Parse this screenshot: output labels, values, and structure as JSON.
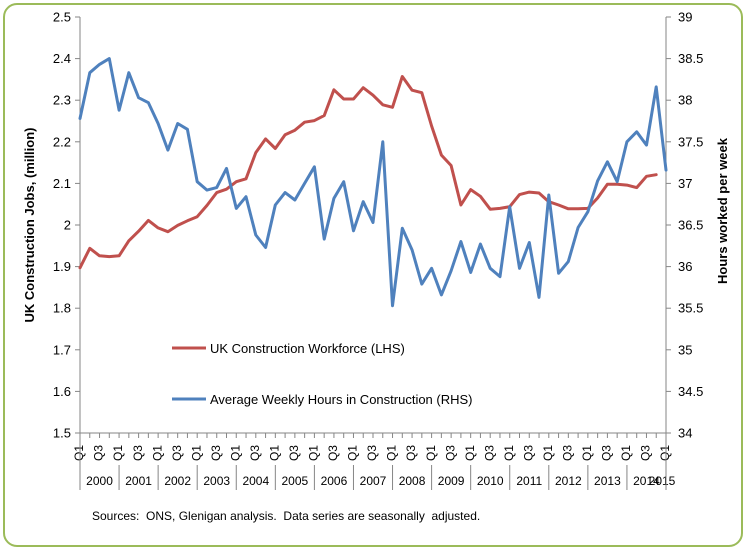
{
  "chart_data": {
    "type": "line",
    "title": "",
    "y_left_label": "UK Construction Jobs, (million)",
    "y_right_label": "Hours worked per week",
    "y_left_lim": [
      1.5,
      2.5
    ],
    "y_left_ticks": [
      "1.5",
      "1.6",
      "1.7",
      "1.8",
      "1.9",
      "2",
      "2.1",
      "2.2",
      "2.3",
      "2.4",
      "2.5"
    ],
    "y_right_lim": [
      34,
      39
    ],
    "y_right_ticks": [
      "34",
      "34.5",
      "35",
      "35.5",
      "36",
      "36.5",
      "37",
      "37.5",
      "38",
      "38.5",
      "39"
    ],
    "quarter_labels": [
      "Q1",
      "Q3"
    ],
    "years": [
      "2000",
      "2001",
      "2002",
      "2003",
      "2004",
      "2005",
      "2006",
      "2007",
      "2008",
      "2009",
      "2010",
      "2011",
      "2012",
      "2013",
      "2014",
      "2015"
    ],
    "grid": false,
    "legend": "center-left",
    "series": [
      {
        "name": "UK Construction Workforce (LHS)",
        "axis": "left",
        "color": "#c0504d",
        "values": [
          1.897,
          1.944,
          1.926,
          1.924,
          1.926,
          1.962,
          1.985,
          2.011,
          1.993,
          1.984,
          1.999,
          2.01,
          2.02,
          2.047,
          2.078,
          2.086,
          2.104,
          2.111,
          2.174,
          2.207,
          2.184,
          2.217,
          2.228,
          2.247,
          2.251,
          2.263,
          2.325,
          2.303,
          2.303,
          2.33,
          2.312,
          2.289,
          2.283,
          2.357,
          2.324,
          2.318,
          2.238,
          2.168,
          2.143,
          2.048,
          2.085,
          2.069,
          2.038,
          2.04,
          2.044,
          2.073,
          2.079,
          2.077,
          2.056,
          2.048,
          2.039,
          2.039,
          2.04,
          2.065,
          2.098,
          2.098,
          2.096,
          2.09,
          2.117,
          2.121
        ]
      },
      {
        "name": "Average Weekly Hours in Construction (RHS)",
        "axis": "right",
        "color": "#4f81bd",
        "values": [
          37.78,
          38.33,
          38.43,
          38.5,
          37.88,
          38.33,
          38.03,
          37.97,
          37.72,
          37.4,
          37.72,
          37.65,
          37.02,
          36.92,
          36.95,
          37.18,
          36.7,
          36.84,
          36.38,
          36.23,
          36.74,
          36.89,
          36.8,
          37.0,
          37.2,
          36.33,
          36.82,
          37.02,
          36.43,
          36.78,
          36.53,
          37.5,
          35.53,
          36.46,
          36.2,
          35.79,
          35.98,
          35.66,
          35.95,
          36.3,
          35.93,
          36.27,
          35.98,
          35.88,
          36.72,
          35.98,
          36.29,
          35.63,
          36.86,
          35.92,
          36.06,
          36.47,
          36.66,
          37.03,
          37.26,
          37.02,
          37.5,
          37.62,
          37.46,
          38.16,
          37.16
        ]
      }
    ]
  },
  "source_note": "Sources:  ONS, Glenigan analysis.  Data series are seasonally  adjusted."
}
